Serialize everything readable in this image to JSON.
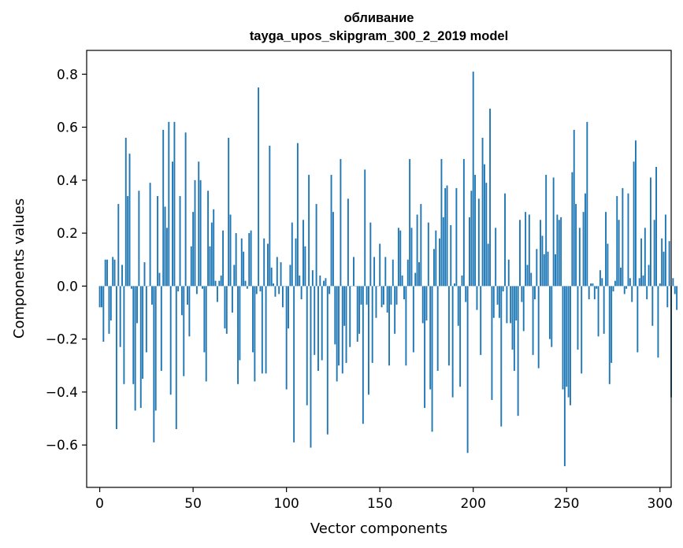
{
  "chart_data": {
    "type": "bar",
    "title": [
      "обливание",
      "tayga_upos_skipgram_300_2_2019 model"
    ],
    "xlabel": "Vector components",
    "ylabel": "Components values",
    "xlim": [
      -7,
      306
    ],
    "ylim": [
      -0.76,
      0.89
    ],
    "xticks": [
      0,
      50,
      100,
      150,
      200,
      250,
      300
    ],
    "xtick_labels": [
      "0",
      "50",
      "100",
      "150",
      "200",
      "250",
      "300"
    ],
    "yticks": [
      0.8,
      0.6,
      0.4,
      0.2,
      0.0,
      -0.2,
      -0.4,
      -0.6
    ],
    "ytick_labels": [
      "0.8",
      "0.6",
      "0.4",
      "0.2",
      "0.0",
      "−0.2",
      "−0.4",
      "−0.6"
    ],
    "bar_color": "#1f77b4",
    "grid": false,
    "legend": "none",
    "values": [
      -0.08,
      -0.08,
      -0.21,
      0.1,
      0.1,
      -0.18,
      -0.13,
      0.11,
      0.1,
      -0.54,
      0.31,
      -0.23,
      0.08,
      -0.37,
      0.56,
      0.34,
      0.5,
      -0.01,
      -0.37,
      -0.47,
      -0.14,
      0.36,
      -0.46,
      -0.35,
      0.09,
      -0.25,
      0.0,
      0.39,
      -0.07,
      -0.59,
      -0.47,
      0.34,
      0.05,
      -0.32,
      0.59,
      0.3,
      0.22,
      0.62,
      -0.41,
      0.47,
      0.62,
      -0.54,
      -0.02,
      0.34,
      -0.11,
      -0.34,
      0.58,
      -0.07,
      -0.19,
      0.15,
      0.28,
      0.4,
      -0.03,
      0.47,
      0.4,
      -0.01,
      -0.25,
      -0.36,
      0.36,
      0.15,
      0.24,
      0.29,
      0.02,
      -0.06,
      0.02,
      0.04,
      0.21,
      -0.16,
      -0.18,
      0.56,
      0.27,
      -0.1,
      0.08,
      0.2,
      -0.37,
      -0.28,
      0.18,
      0.13,
      0.02,
      -0.01,
      0.2,
      0.21,
      -0.25,
      -0.36,
      -0.03,
      0.75,
      -0.02,
      -0.33,
      0.18,
      -0.33,
      0.16,
      0.53,
      0.07,
      0.01,
      -0.04,
      0.11,
      -0.03,
      0.09,
      -0.08,
      0.0,
      -0.39,
      -0.16,
      0.08,
      0.24,
      -0.59,
      0.18,
      0.54,
      0.04,
      -0.05,
      0.25,
      0.15,
      -0.45,
      0.42,
      -0.61,
      0.06,
      -0.26,
      0.31,
      -0.32,
      0.04,
      -0.28,
      0.02,
      0.03,
      -0.56,
      -0.03,
      0.42,
      0.28,
      -0.22,
      -0.36,
      -0.3,
      0.48,
      -0.33,
      -0.15,
      -0.29,
      0.33,
      -0.23,
      0.0,
      0.11,
      0.0,
      -0.21,
      -0.18,
      -0.07,
      -0.52,
      0.44,
      -0.07,
      -0.41,
      0.24,
      -0.29,
      0.11,
      -0.12,
      0.0,
      0.16,
      -0.08,
      -0.07,
      0.11,
      -0.1,
      -0.3,
      -0.07,
      0.1,
      -0.18,
      -0.07,
      0.22,
      0.21,
      0.04,
      -0.05,
      -0.3,
      0.1,
      0.48,
      0.22,
      -0.25,
      0.05,
      0.27,
      0.09,
      0.31,
      -0.14,
      -0.46,
      -0.13,
      0.24,
      -0.39,
      -0.55,
      0.14,
      0.21,
      -0.32,
      0.18,
      0.48,
      0.26,
      0.37,
      0.38,
      -0.3,
      0.23,
      -0.42,
      0.01,
      0.37,
      -0.15,
      -0.38,
      0.04,
      0.48,
      -0.06,
      -0.63,
      0.26,
      0.36,
      0.81,
      0.42,
      -0.09,
      0.33,
      -0.26,
      0.56,
      0.46,
      0.39,
      0.16,
      0.67,
      -0.43,
      -0.12,
      0.22,
      -0.07,
      -0.12,
      -0.53,
      -0.02,
      0.35,
      -0.14,
      0.1,
      -0.14,
      -0.24,
      -0.32,
      -0.13,
      -0.49,
      0.25,
      -0.06,
      -0.17,
      0.28,
      0.08,
      0.27,
      0.05,
      -0.26,
      -0.05,
      0.14,
      -0.31,
      0.25,
      0.19,
      0.12,
      0.42,
      0.13,
      -0.2,
      -0.23,
      0.41,
      0.12,
      0.27,
      0.25,
      0.26,
      -0.39,
      -0.68,
      -0.38,
      -0.42,
      -0.45,
      0.43,
      0.59,
      0.31,
      -0.24,
      0.22,
      -0.33,
      0.28,
      0.35,
      0.62,
      -0.05,
      0.01,
      0.01,
      -0.05,
      -0.01,
      -0.19,
      0.06,
      0.03,
      -0.18,
      0.28,
      0.16,
      -0.37,
      -0.29,
      -0.02,
      0.02,
      0.34,
      0.25,
      0.07,
      0.37,
      -0.03,
      -0.01,
      0.35,
      0.03,
      -0.06,
      0.47,
      0.55,
      -0.25,
      0.03,
      0.18,
      0.04,
      0.22,
      -0.05,
      0.08,
      0.41,
      -0.15,
      0.25,
      0.45,
      -0.27,
      0.01,
      0.18,
      0.13,
      0.27,
      -0.08,
      0.17,
      -0.42,
      0.03,
      -0.03,
      -0.09
    ]
  }
}
